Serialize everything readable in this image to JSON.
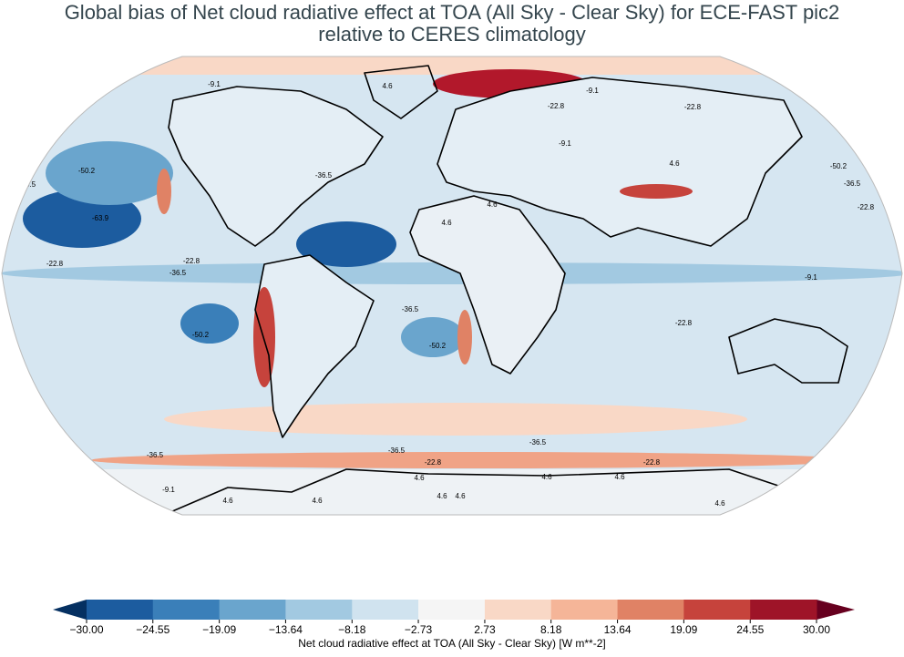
{
  "title": [
    "Global bias of Net cloud radiative effect at TOA (All Sky - Clear Sky) for ECE-FAST pic2",
    "relative to CERES climatology"
  ],
  "contour_levels": [
    -63.9,
    -50.2,
    -36.5,
    -22.8,
    -9.1,
    4.6
  ],
  "colorbar": {
    "label": "Net cloud radiative effect at TOA (All Sky - Clear Sky) [W m**-2]",
    "ticks": [
      {
        "value": -30,
        "label": "−30.00"
      },
      {
        "value": -24.55,
        "label": "−24.55"
      },
      {
        "value": -19.09,
        "label": "−19.09"
      },
      {
        "value": -13.64,
        "label": "−13.64"
      },
      {
        "value": -8.18,
        "label": "−8.18"
      },
      {
        "value": -2.73,
        "label": "−2.73"
      },
      {
        "value": 2.73,
        "label": "2.73"
      },
      {
        "value": 8.18,
        "label": "8.18"
      },
      {
        "value": 13.64,
        "label": "13.64"
      },
      {
        "value": 19.09,
        "label": "19.09"
      },
      {
        "value": 24.55,
        "label": "24.55"
      },
      {
        "value": 30,
        "label": "30.00"
      }
    ],
    "colors": [
      "#1c5c9f",
      "#3a7fb9",
      "#6aa5cd",
      "#a2c9e1",
      "#d0e3ef",
      "#f5f5f5",
      "#f9d8c6",
      "#f5b598",
      "#e08265",
      "#c6433c",
      "#9e1428"
    ],
    "under_color": "#053061",
    "over_color": "#67001f"
  }
}
